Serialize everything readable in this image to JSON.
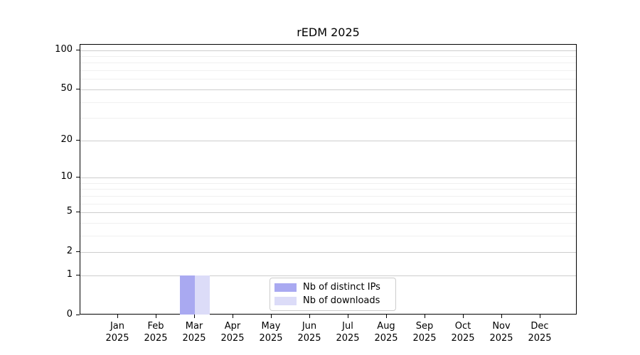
{
  "chart_data": {
    "type": "bar",
    "title": "rEDM 2025",
    "year": "2025",
    "months": [
      "Jan",
      "Feb",
      "Mar",
      "Apr",
      "May",
      "Jun",
      "Jul",
      "Aug",
      "Sep",
      "Oct",
      "Nov",
      "Dec"
    ],
    "series": [
      {
        "name": "Nb of distinct IPs",
        "color": "#a9a9f1",
        "values": [
          0,
          0,
          1,
          0,
          0,
          0,
          0,
          0,
          0,
          0,
          0,
          0
        ]
      },
      {
        "name": "Nb of downloads",
        "color": "#dcdcf8",
        "values": [
          0,
          0,
          1,
          0,
          0,
          0,
          0,
          0,
          0,
          0,
          0,
          0
        ]
      }
    ],
    "y_axis": {
      "scale": "log10(value+1)",
      "tick_values": [
        0,
        1,
        2,
        5,
        10,
        20,
        50,
        100
      ],
      "minor_grid_values": [
        3,
        4,
        6,
        7,
        8,
        9,
        30,
        40,
        60,
        70,
        80,
        90
      ],
      "max_value": 110
    },
    "x_axis": {
      "tick_label_format": "month newline year"
    },
    "legend": {
      "position": "lower center inside plot",
      "entries": [
        "Nb of distinct IPs",
        "Nb of downloads"
      ]
    },
    "grid": "horizontal",
    "colors": {
      "axis": "#000000",
      "major_grid": "#cdcdcd",
      "minor_grid": "#f0f0f0",
      "background": "#ffffff"
    }
  }
}
